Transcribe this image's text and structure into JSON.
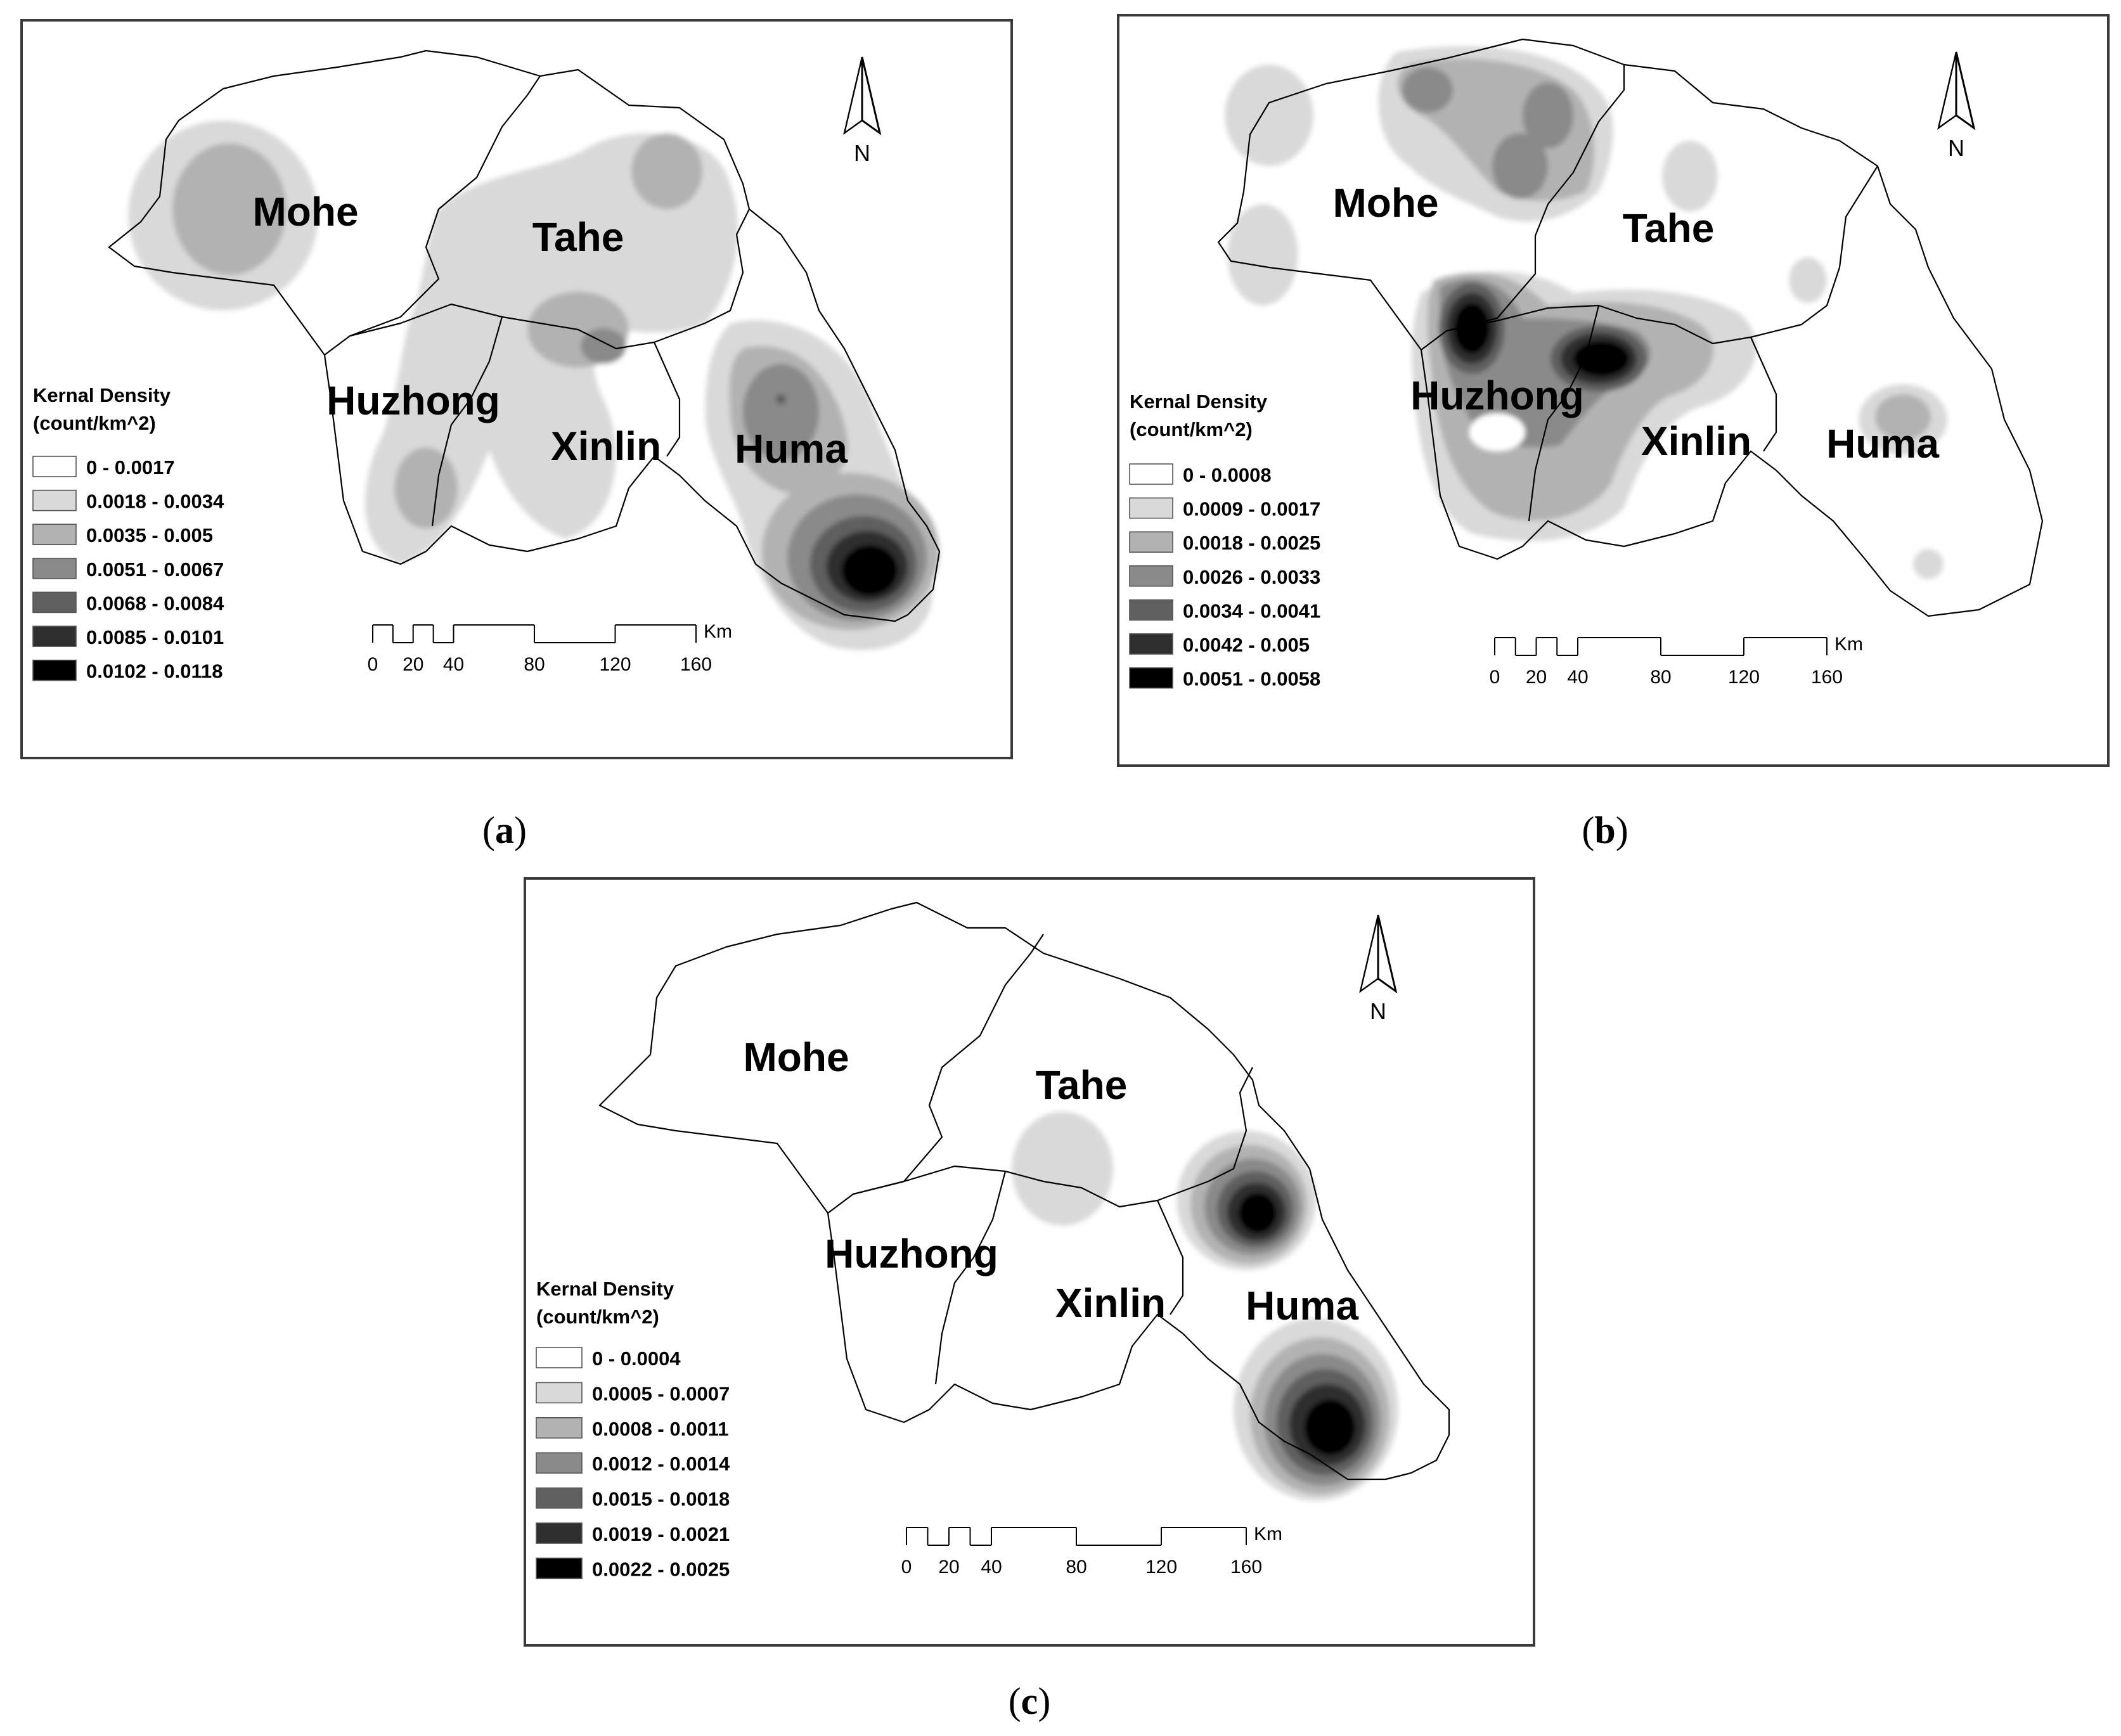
{
  "colors": {
    "ramp": [
      "#ffffff",
      "#d9d9d9",
      "#b2b2b2",
      "#8a8a8a",
      "#5f5f5f",
      "#2f2f2f",
      "#000000"
    ],
    "boundary": "#000000",
    "frame": "#3a3a3a"
  },
  "maps": [
    {
      "panel_label": "a",
      "north_label": "N",
      "county_labels": {
        "mohe": "Mohe",
        "tahe": "Tahe",
        "huzhong": "Huzhong",
        "xinlin": "Xinlin",
        "huma": "Huma"
      },
      "legend": {
        "title_line1": "Kernal Density",
        "title_line2": "(count/km^2)",
        "classes": [
          "0 - 0.0017",
          "0.0018 - 0.0034",
          "0.0035 - 0.005",
          "0.0051 - 0.0067",
          "0.0068 - 0.0084",
          "0.0085 - 0.0101",
          "0.0102 - 0.0118"
        ]
      },
      "scale_bar": {
        "ticks": [
          "0",
          "20",
          "40",
          "80",
          "120",
          "160"
        ],
        "unit": "Km"
      }
    },
    {
      "panel_label": "b",
      "north_label": "N",
      "county_labels": {
        "mohe": "Mohe",
        "tahe": "Tahe",
        "huzhong": "Huzhong",
        "xinlin": "Xinlin",
        "huma": "Huma"
      },
      "legend": {
        "title_line1": "Kernal Density",
        "title_line2": "(count/km^2)",
        "classes": [
          "0 - 0.0008",
          "0.0009 - 0.0017",
          "0.0018 - 0.0025",
          "0.0026 - 0.0033",
          "0.0034 - 0.0041",
          "0.0042 - 0.005",
          "0.0051 - 0.0058"
        ]
      },
      "scale_bar": {
        "ticks": [
          "0",
          "20",
          "40",
          "80",
          "120",
          "160"
        ],
        "unit": "Km"
      }
    },
    {
      "panel_label": "c",
      "north_label": "N",
      "county_labels": {
        "mohe": "Mohe",
        "tahe": "Tahe",
        "huzhong": "Huzhong",
        "xinlin": "Xinlin",
        "huma": "Huma"
      },
      "legend": {
        "title_line1": "Kernal Density",
        "title_line2": "(count/km^2)",
        "classes": [
          "0 - 0.0004",
          "0.0005 - 0.0007",
          "0.0008 - 0.0011",
          "0.0012 - 0.0014",
          "0.0015 - 0.0018",
          "0.0019 - 0.0021",
          "0.0022 - 0.0025"
        ]
      },
      "scale_bar": {
        "ticks": [
          "0",
          "20",
          "40",
          "80",
          "120",
          "160"
        ],
        "unit": "Km"
      }
    }
  ]
}
